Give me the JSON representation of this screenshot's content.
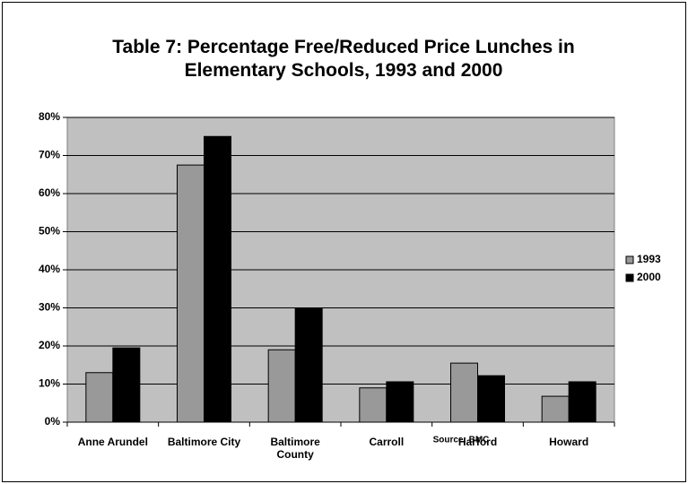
{
  "chart_data": {
    "type": "bar",
    "title": "Table 7: Percentage Free/Reduced Price Lunches in Elementary Schools, 1993 and 2000",
    "categories": [
      "Anne Arundel",
      "Baltimore City",
      "Baltimore County",
      "Carroll",
      "Harford",
      "Howard"
    ],
    "series": [
      {
        "name": "1993",
        "color": "#999999",
        "values": [
          13,
          67.5,
          19,
          9,
          15.5,
          6.8
        ]
      },
      {
        "name": "2000",
        "color": "#000000",
        "values": [
          19.5,
          75,
          30,
          10.6,
          12.2,
          10.6
        ]
      }
    ],
    "ylim": [
      0,
      80
    ],
    "yticks": [
      {
        "value": 0,
        "label": "0%"
      },
      {
        "value": 10,
        "label": "10%"
      },
      {
        "value": 20,
        "label": "20%"
      },
      {
        "value": 30,
        "label": "30%"
      },
      {
        "value": 40,
        "label": "40%"
      },
      {
        "value": 50,
        "label": "50%"
      },
      {
        "value": 60,
        "label": "60%"
      },
      {
        "value": 70,
        "label": "70%"
      },
      {
        "value": 80,
        "label": "80%"
      }
    ],
    "grid": true,
    "legend": "right",
    "annotation": "Source: BMC"
  }
}
